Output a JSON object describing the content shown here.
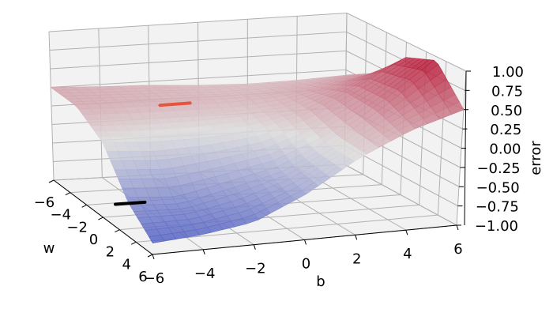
{
  "chart_data": {
    "type": "surface3d",
    "title": "",
    "xlabel": "b",
    "ylabel": "w",
    "zlabel": "error",
    "x_ticks": [
      "−6",
      "−4",
      "−2",
      "0",
      "2",
      "4",
      "6"
    ],
    "y_ticks": [
      "−6",
      "−4",
      "−2",
      "0",
      "2",
      "4",
      "6"
    ],
    "z_ticks": [
      "−1.00",
      "−0.75",
      "−0.50",
      "−0.25",
      "0.00",
      "0.25",
      "0.50",
      "0.75",
      "1.00"
    ],
    "xlim": [
      -6,
      6
    ],
    "ylim": [
      -6,
      6
    ],
    "zlim": [
      -1,
      1
    ],
    "grid": true,
    "colormap": "coolwarm",
    "colormap_low": "#3b4cc0",
    "colormap_mid": "#dddcdc",
    "colormap_high": "#b40426",
    "surface_rows_w": [
      -6,
      -3,
      0,
      3,
      6
    ],
    "surface_cols_b": [
      -6,
      -4,
      -2,
      0,
      2,
      4,
      6
    ],
    "surface_z": [
      [
        0.25,
        0.22,
        0.2,
        0.16,
        0.14,
        0.15,
        0.18
      ],
      [
        0.24,
        0.22,
        0.2,
        0.18,
        0.2,
        0.28,
        0.4
      ],
      [
        0.0,
        -0.05,
        -0.05,
        0.0,
        0.15,
        0.45,
        0.8
      ],
      [
        -0.55,
        -0.6,
        -0.45,
        -0.3,
        0.0,
        0.45,
        0.95
      ],
      [
        -0.85,
        -0.8,
        -0.7,
        -0.4,
        0.0,
        0.3,
        0.5
      ]
    ],
    "markers": [
      {
        "b": -2.4,
        "w": -2.0,
        "z": 0.26,
        "color": "#e8543a"
      },
      {
        "b": -4.3,
        "w": -1.8,
        "z": -1.0,
        "color": "#000000"
      }
    ]
  }
}
